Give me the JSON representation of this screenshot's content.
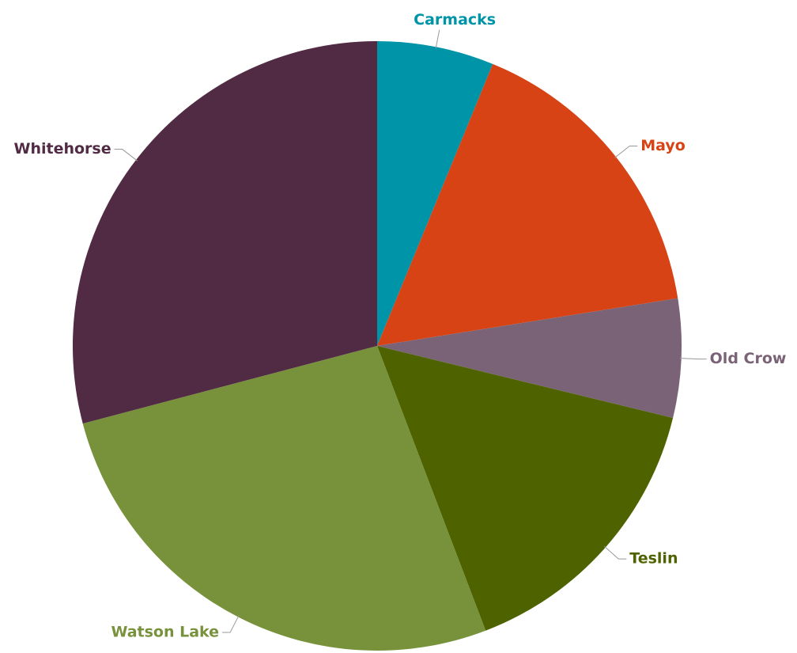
{
  "chart_data": {
    "type": "pie",
    "categories": [
      "Carmacks",
      "Mayo",
      "Old Crow",
      "Teslin",
      "Watson Lake",
      "Whitehorse"
    ],
    "values": [
      6.2,
      16.3,
      6.3,
      15.4,
      26.7,
      29.1
    ],
    "colors": [
      "#0094a8",
      "#d84315",
      "#7b6377",
      "#4e6300",
      "#78923c",
      "#512a44"
    ]
  }
}
